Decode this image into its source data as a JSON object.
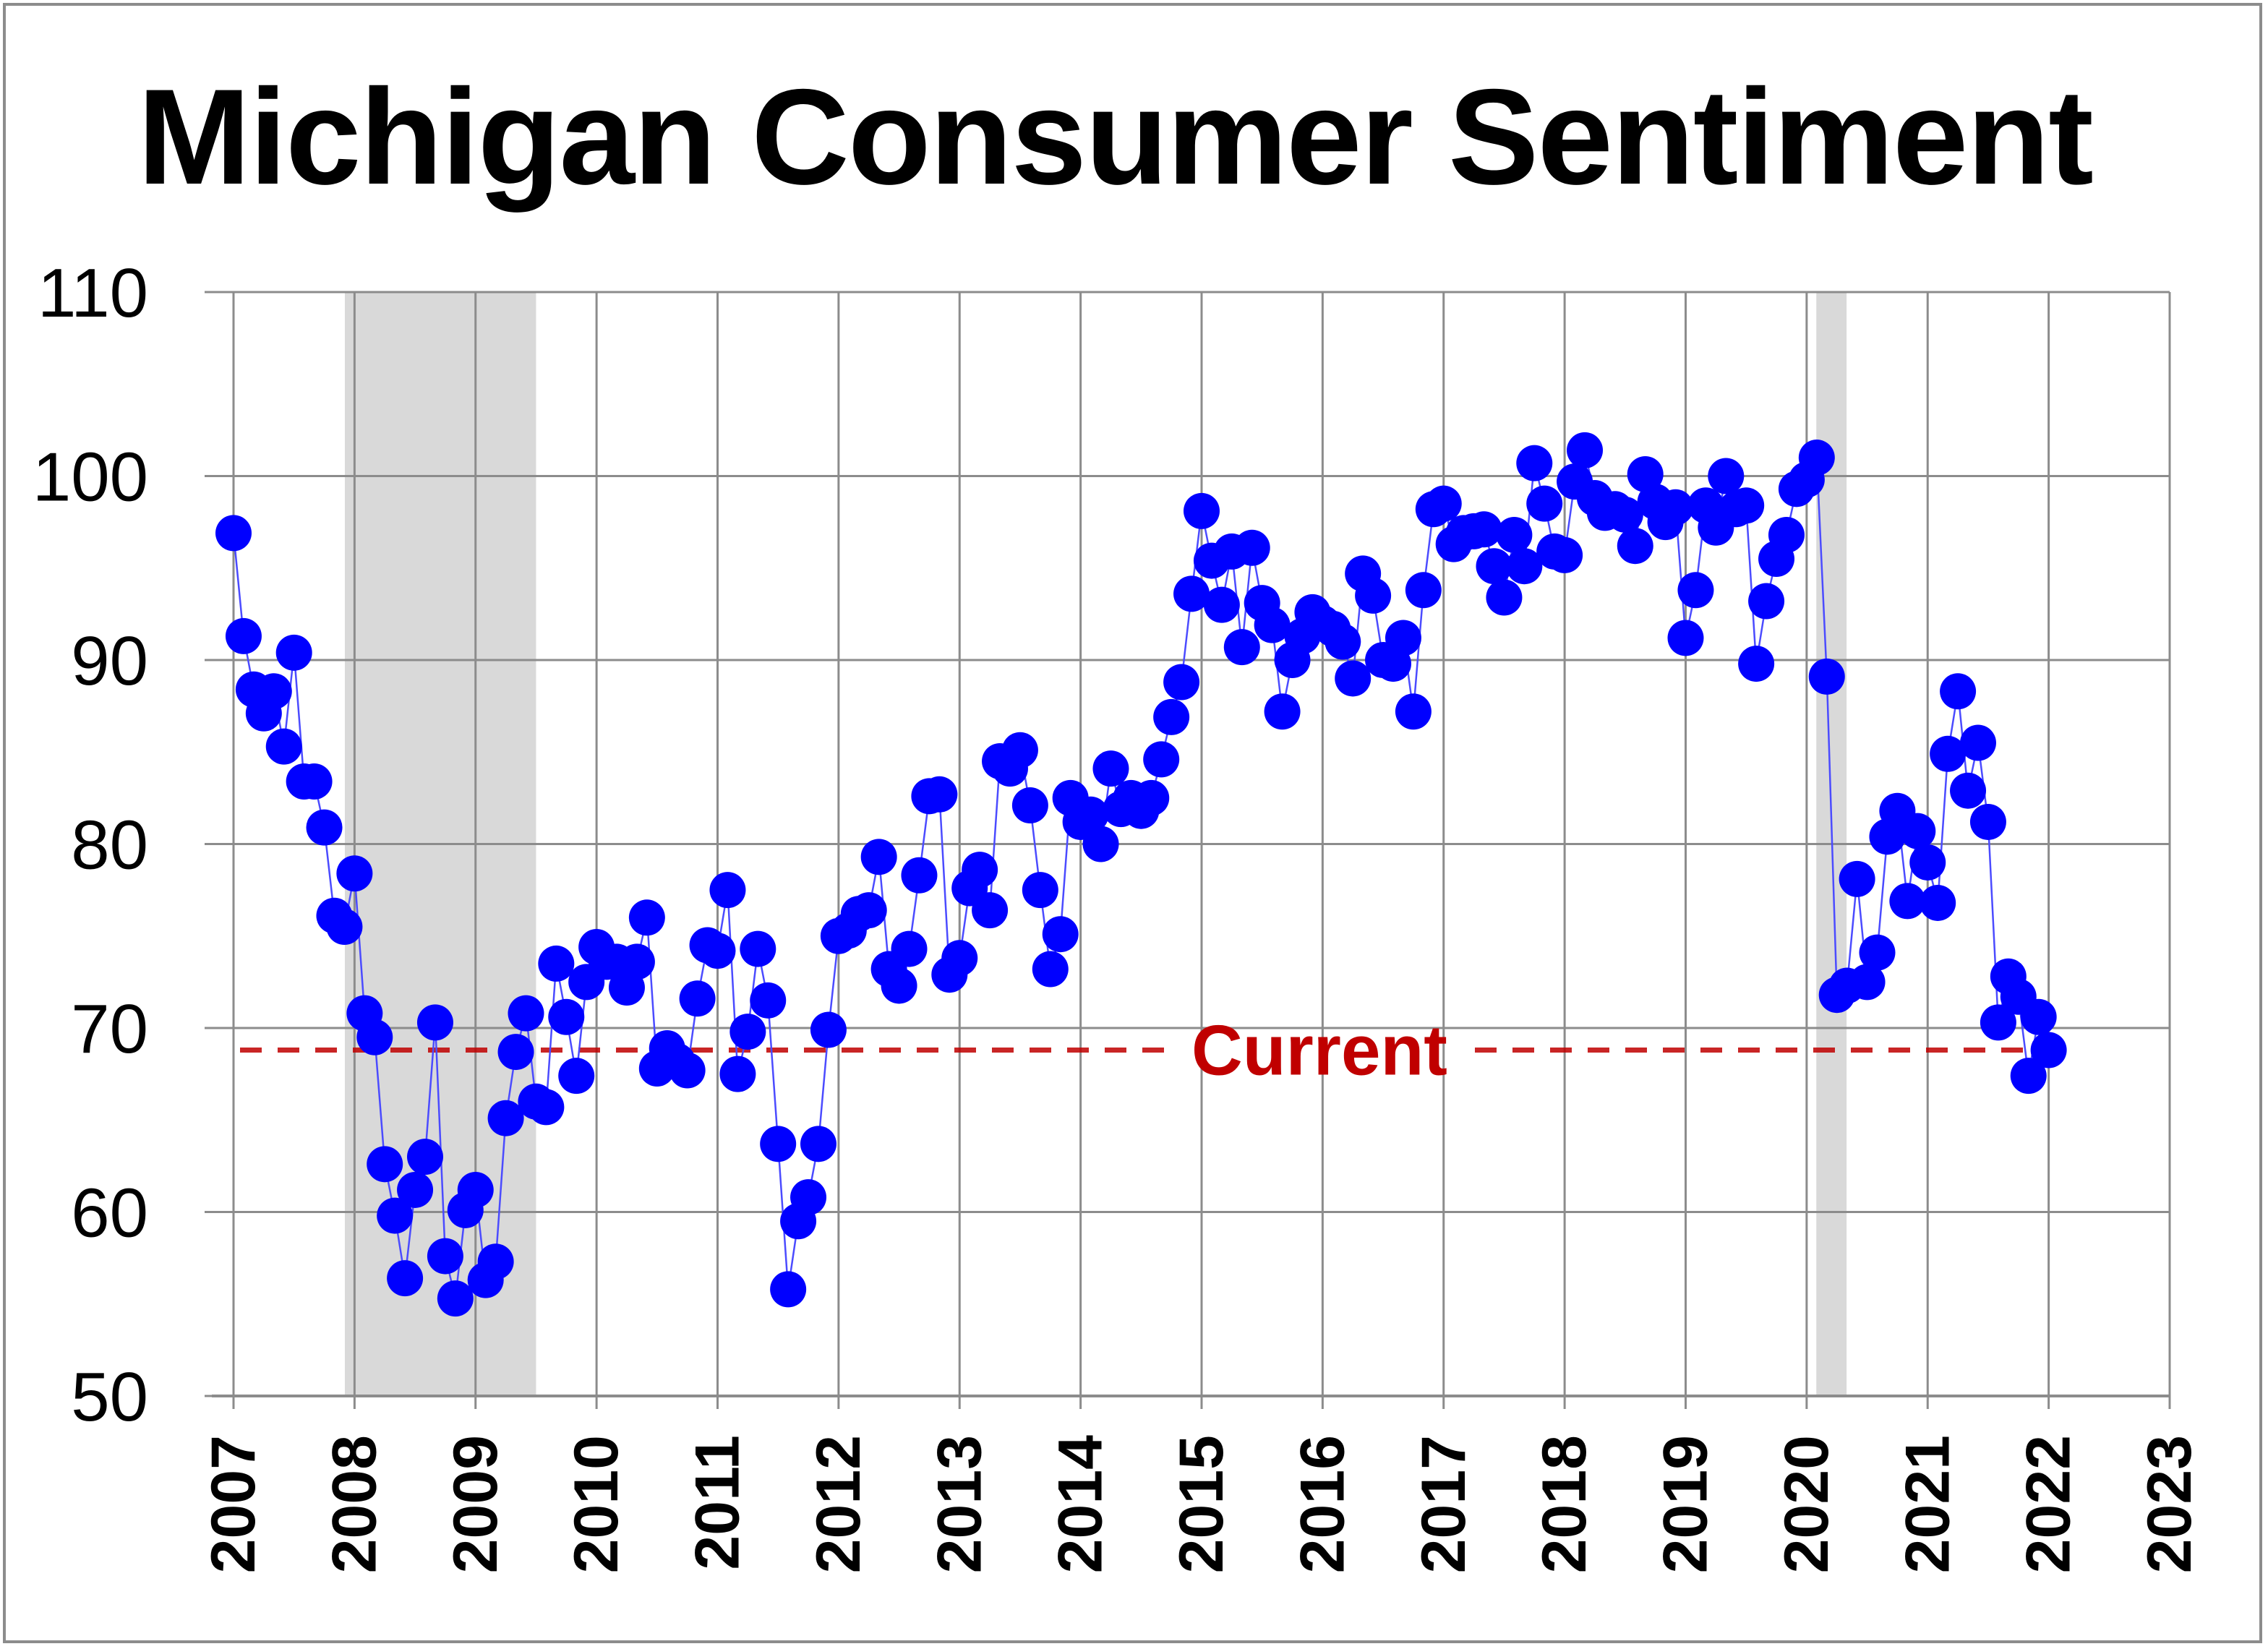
{
  "chart_data": {
    "type": "scatter",
    "title": "Michigan Consumer Sentiment",
    "xlabel": "",
    "ylabel": "",
    "xlim": [
      2007,
      2023
    ],
    "ylim": [
      50,
      110
    ],
    "y_ticks": [
      "50",
      "60",
      "70",
      "80",
      "90",
      "100",
      "110"
    ],
    "x_ticks": [
      "2007",
      "2008",
      "2009",
      "2010",
      "2011",
      "2012",
      "2013",
      "2014",
      "2015",
      "2016",
      "2017",
      "2018",
      "2019",
      "2020",
      "2021",
      "2022",
      "2023"
    ],
    "grid": true,
    "marker_color": "#0000ff",
    "line_color": "#4b4bff",
    "recession_color": "#d9d9d9",
    "recessions": [
      [
        2007.92,
        2009.5
      ],
      [
        2020.08,
        2020.33
      ]
    ],
    "current": {
      "label": "Current",
      "value": 68.8,
      "color": "#c00000"
    },
    "series": [
      {
        "values": [
          96.9,
          91.3,
          88.4,
          87.1,
          88.3,
          85.3,
          90.4,
          83.4,
          83.4,
          80.9,
          76.1,
          75.5,
          78.4,
          70.8,
          69.5,
          62.6,
          59.8,
          56.4,
          61.2,
          63.0,
          70.3,
          57.6,
          55.3,
          60.1,
          61.2,
          56.3,
          57.3,
          65.1,
          68.7,
          70.8,
          66.0,
          65.7,
          73.5,
          70.6,
          67.4,
          72.5,
          74.4,
          73.6,
          73.6,
          72.2,
          73.6,
          76.0,
          67.8,
          68.9,
          68.2,
          67.7,
          71.6,
          74.5,
          74.2,
          77.5,
          67.5,
          69.8,
          74.3,
          71.5,
          63.7,
          55.8,
          59.5,
          60.8,
          63.7,
          69.9,
          75.0,
          75.3,
          76.2,
          76.4,
          79.3,
          73.2,
          72.3,
          74.3,
          78.3,
          82.6,
          82.7,
          72.9,
          73.8,
          77.6,
          78.6,
          76.4,
          84.5,
          84.1,
          85.1,
          82.1,
          77.5,
          73.2,
          75.1,
          82.5,
          81.2,
          81.6,
          80.0,
          84.1,
          81.9,
          82.5,
          81.8,
          82.5,
          84.6,
          86.9,
          88.8,
          93.6,
          98.1,
          95.4,
          93.0,
          95.9,
          90.7,
          96.1,
          93.1,
          91.9,
          87.2,
          90.0,
          91.3,
          92.6,
          92.0,
          91.7,
          91.0,
          89.0,
          94.7,
          93.5,
          90.0,
          89.8,
          91.2,
          87.2,
          93.8,
          98.2,
          98.5,
          96.3,
          96.9,
          97.0,
          97.1,
          95.1,
          93.4,
          96.8,
          95.1,
          100.7,
          98.5,
          95.9,
          95.7,
          99.7,
          101.4,
          98.8,
          98.0,
          98.2,
          97.9,
          96.2,
          100.1,
          98.6,
          97.5,
          98.3,
          91.2,
          93.8,
          98.4,
          97.2,
          100.0,
          98.2,
          98.4,
          89.8,
          93.2,
          95.5,
          96.8,
          99.3,
          99.8,
          101.0,
          89.1,
          71.8,
          72.3,
          78.1,
          72.5,
          74.1,
          80.4,
          81.8,
          76.9,
          80.7,
          79.0,
          76.8,
          84.9,
          88.3,
          82.9,
          85.5,
          81.2,
          70.3,
          72.8,
          71.7,
          67.4,
          70.6,
          68.8
        ]
      }
    ]
  }
}
